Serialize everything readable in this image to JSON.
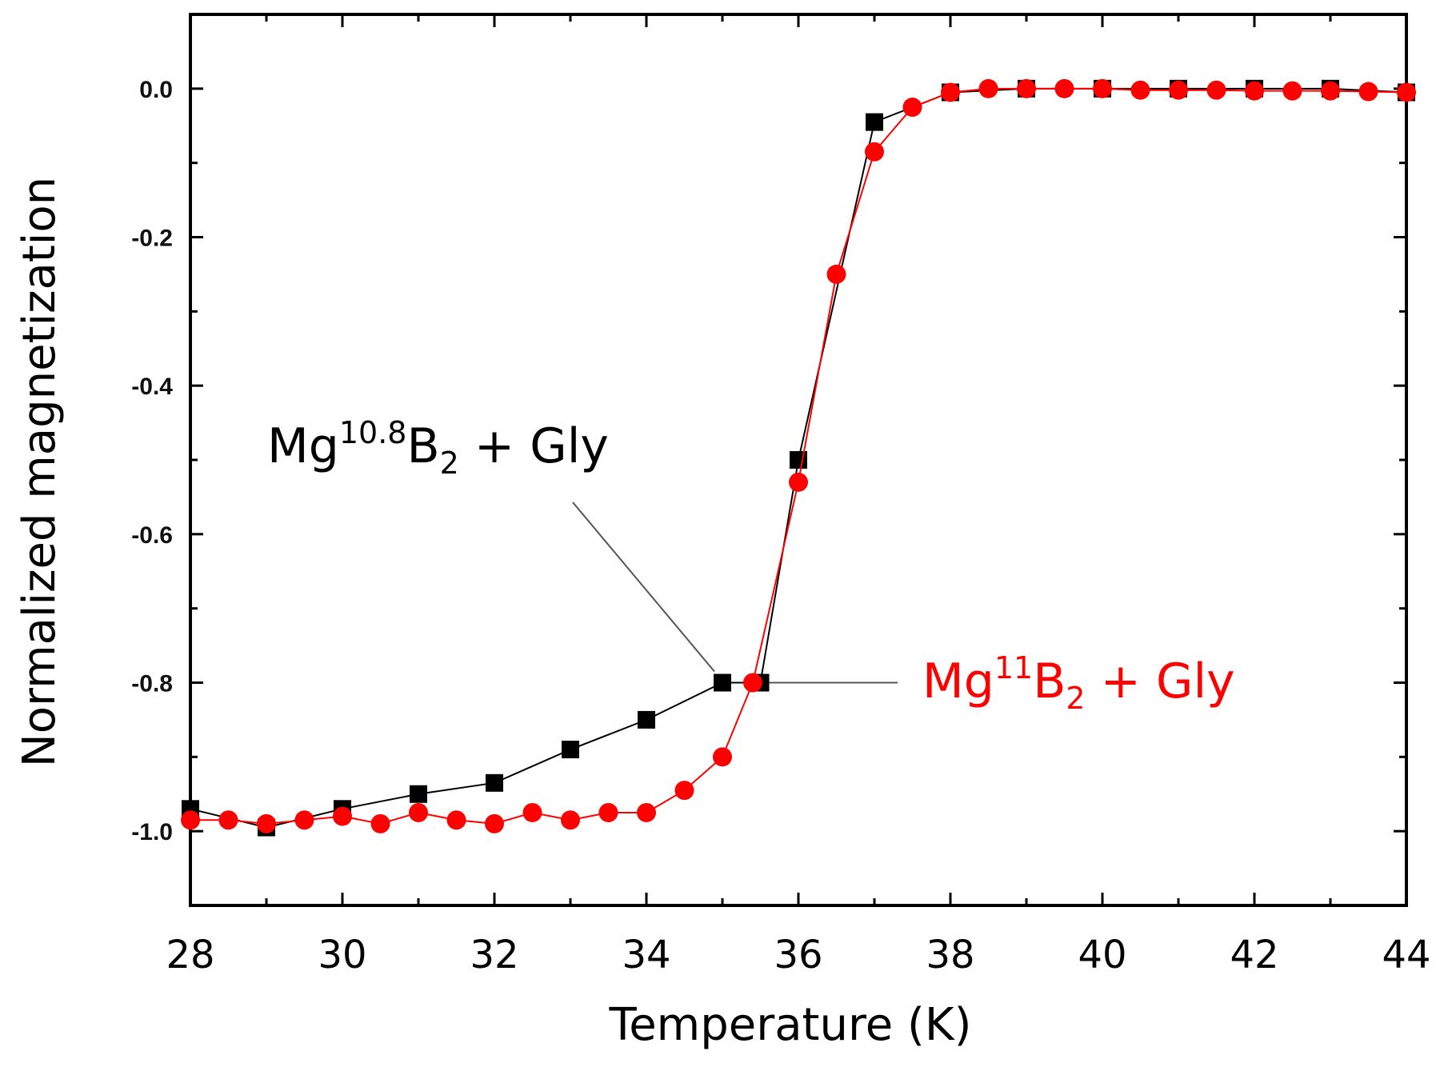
{
  "chart_data": {
    "type": "line",
    "title": "",
    "xlabel": "Temperature (K)",
    "ylabel": "Normalized magnetization",
    "xlim": [
      28,
      44
    ],
    "ylim": [
      -1.1,
      0.1
    ],
    "x_ticks": [
      28,
      30,
      32,
      34,
      36,
      38,
      40,
      42,
      44
    ],
    "x_tick_labels": [
      "28",
      "30",
      "32",
      "34",
      "36",
      "38",
      "40",
      "42",
      "44"
    ],
    "y_ticks": [
      0.0,
      -0.2,
      -0.4,
      -0.6,
      -0.8,
      -1.0
    ],
    "y_tick_labels": [
      "0.0",
      "-0.2",
      "-0.4",
      "-0.6",
      "-0.8",
      "-1.0"
    ],
    "series": [
      {
        "name": "Mg10.8B2 + Gly",
        "color": "#000000",
        "marker": "square",
        "x": [
          28,
          29,
          30,
          31,
          32,
          33,
          34,
          35,
          35.5,
          36,
          37,
          38,
          39,
          40,
          41,
          42,
          43,
          44
        ],
        "y": [
          -0.97,
          -0.995,
          -0.97,
          -0.95,
          -0.935,
          -0.89,
          -0.85,
          -0.8,
          -0.8,
          -0.5,
          -0.045,
          -0.005,
          0.0,
          0.0,
          0.0,
          0.0,
          0.0,
          -0.005
        ]
      },
      {
        "name": "Mg11B2 + Gly",
        "color": "#ff0000",
        "marker": "circle",
        "x": [
          28,
          28.5,
          29,
          29.5,
          30,
          30.5,
          31,
          31.5,
          32,
          32.5,
          33,
          33.5,
          34,
          34.5,
          35,
          35.4,
          36,
          36.5,
          37,
          37.5,
          38,
          38.5,
          39,
          39.5,
          40,
          40.5,
          41,
          41.5,
          42,
          42.5,
          43,
          43.5,
          44
        ],
        "y": [
          -0.985,
          -0.985,
          -0.99,
          -0.985,
          -0.98,
          -0.99,
          -0.975,
          -0.985,
          -0.99,
          -0.975,
          -0.985,
          -0.975,
          -0.975,
          -0.945,
          -0.9,
          -0.8,
          -0.53,
          -0.25,
          -0.085,
          -0.025,
          -0.005,
          0.0,
          0.0,
          0.0,
          0.0,
          -0.002,
          -0.002,
          -0.002,
          -0.003,
          -0.003,
          -0.003,
          -0.004,
          -0.005
        ]
      }
    ],
    "annotations": [
      {
        "series": 0,
        "base": "Mg",
        "sup": "10.8",
        "mid": "B",
        "sub": "2",
        "tail": " + Gly",
        "color": "#000000",
        "points_to": [
          35,
          -0.8
        ]
      },
      {
        "series": 1,
        "base": "Mg",
        "sup": "11",
        "mid": "B",
        "sub": "2",
        "tail": " + Gly",
        "color": "#ff0000",
        "points_to": [
          35.4,
          -0.8
        ]
      }
    ]
  }
}
